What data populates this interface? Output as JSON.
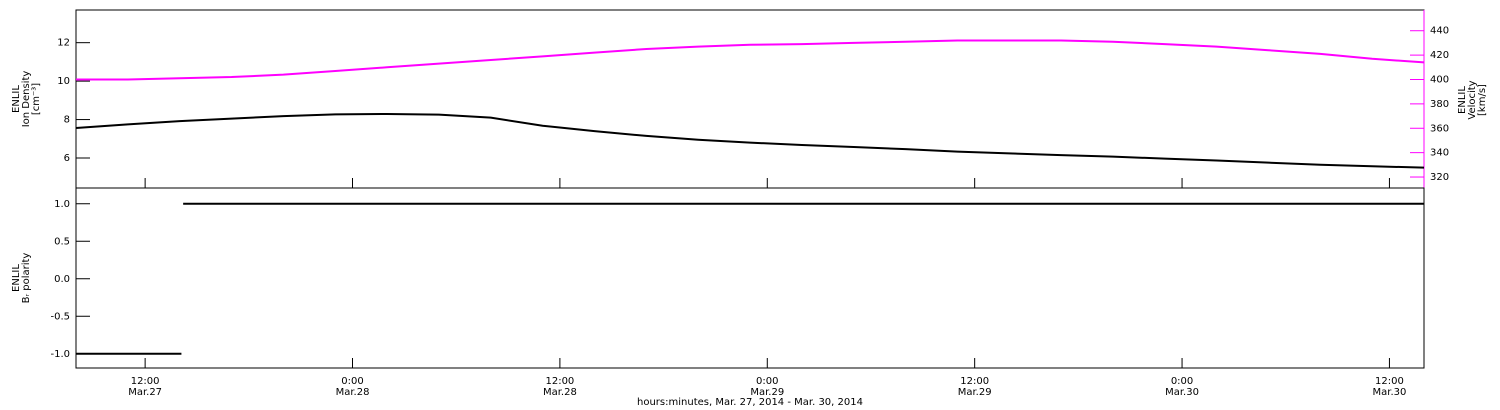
{
  "chart_data": [
    {
      "type": "line",
      "ylabel": [
        "ENLIL",
        "Ion Density",
        "[cm⁻³]"
      ],
      "y2label": [
        "ENLIL",
        "Velocity",
        "[km/s]"
      ],
      "x": [
        8,
        11,
        14,
        17,
        20,
        23,
        26,
        29,
        32,
        35,
        38,
        41,
        44,
        47,
        50,
        53,
        56,
        59,
        62,
        65,
        68,
        71,
        74,
        77,
        80,
        83,
        86
      ],
      "series": [
        {
          "color": "#000000",
          "values": [
            7.56,
            7.75,
            7.92,
            8.05,
            8.18,
            8.27,
            8.29,
            8.26,
            8.1,
            7.68,
            7.4,
            7.15,
            6.95,
            6.8,
            6.68,
            6.57,
            6.46,
            6.33,
            6.24,
            6.15,
            6.07,
            5.97,
            5.87,
            5.76,
            5.65,
            5.57,
            5.5
          ]
        },
        {
          "color": "#ff00ff",
          "axis": "y2",
          "values": [
            400,
            400,
            401,
            402,
            404,
            407,
            410,
            413,
            416,
            419,
            422,
            425,
            427,
            428.5,
            429,
            430,
            431,
            432,
            432,
            432,
            431,
            429,
            427,
            424,
            421,
            417,
            414
          ]
        }
      ],
      "xlim": [
        8,
        86
      ],
      "xticks": [
        12,
        24,
        36,
        48,
        60,
        72,
        84
      ],
      "ylim": [
        4.44,
        13.7
      ],
      "yticks": [
        6,
        8,
        10,
        12
      ],
      "y2lim": [
        311,
        457
      ],
      "y2ticks": [
        320,
        340,
        360,
        380,
        400,
        420,
        440
      ]
    },
    {
      "type": "line",
      "ylabel": [
        "ENLIL",
        "Bᵣ polarity"
      ],
      "xlabel": "hours:minutes, Mar. 27, 2014 - Mar. 30, 2014",
      "x": [
        8,
        14.1,
        14.2,
        14.2,
        86
      ],
      "series": [
        {
          "color": "#000000",
          "values": [
            -1,
            -1,
            null,
            1,
            1
          ]
        }
      ],
      "xlim": [
        8,
        86
      ],
      "xticks": [
        {
          "value": 12,
          "label": "12:00"
        },
        {
          "value": 24,
          "label": "0:00"
        },
        {
          "value": 36,
          "label": "12:00"
        },
        {
          "value": 48,
          "label": "0:00"
        },
        {
          "value": 60,
          "label": "12:00"
        },
        {
          "value": 72,
          "label": "0:00"
        },
        {
          "value": 84,
          "label": "12:00"
        }
      ],
      "xtick_dates": [
        "Mar.27",
        "Mar.28",
        "Mar.28",
        "Mar.29",
        "Mar.29",
        "Mar.30",
        "Mar.30"
      ],
      "ylim": [
        -1.19,
        1.21
      ],
      "yticks": [
        {
          "value": -1,
          "label": "-1.0"
        },
        -0.5,
        {
          "value": 0,
          "label": "0.0"
        },
        0.5,
        {
          "value": 1,
          "label": "1.0"
        }
      ]
    }
  ]
}
